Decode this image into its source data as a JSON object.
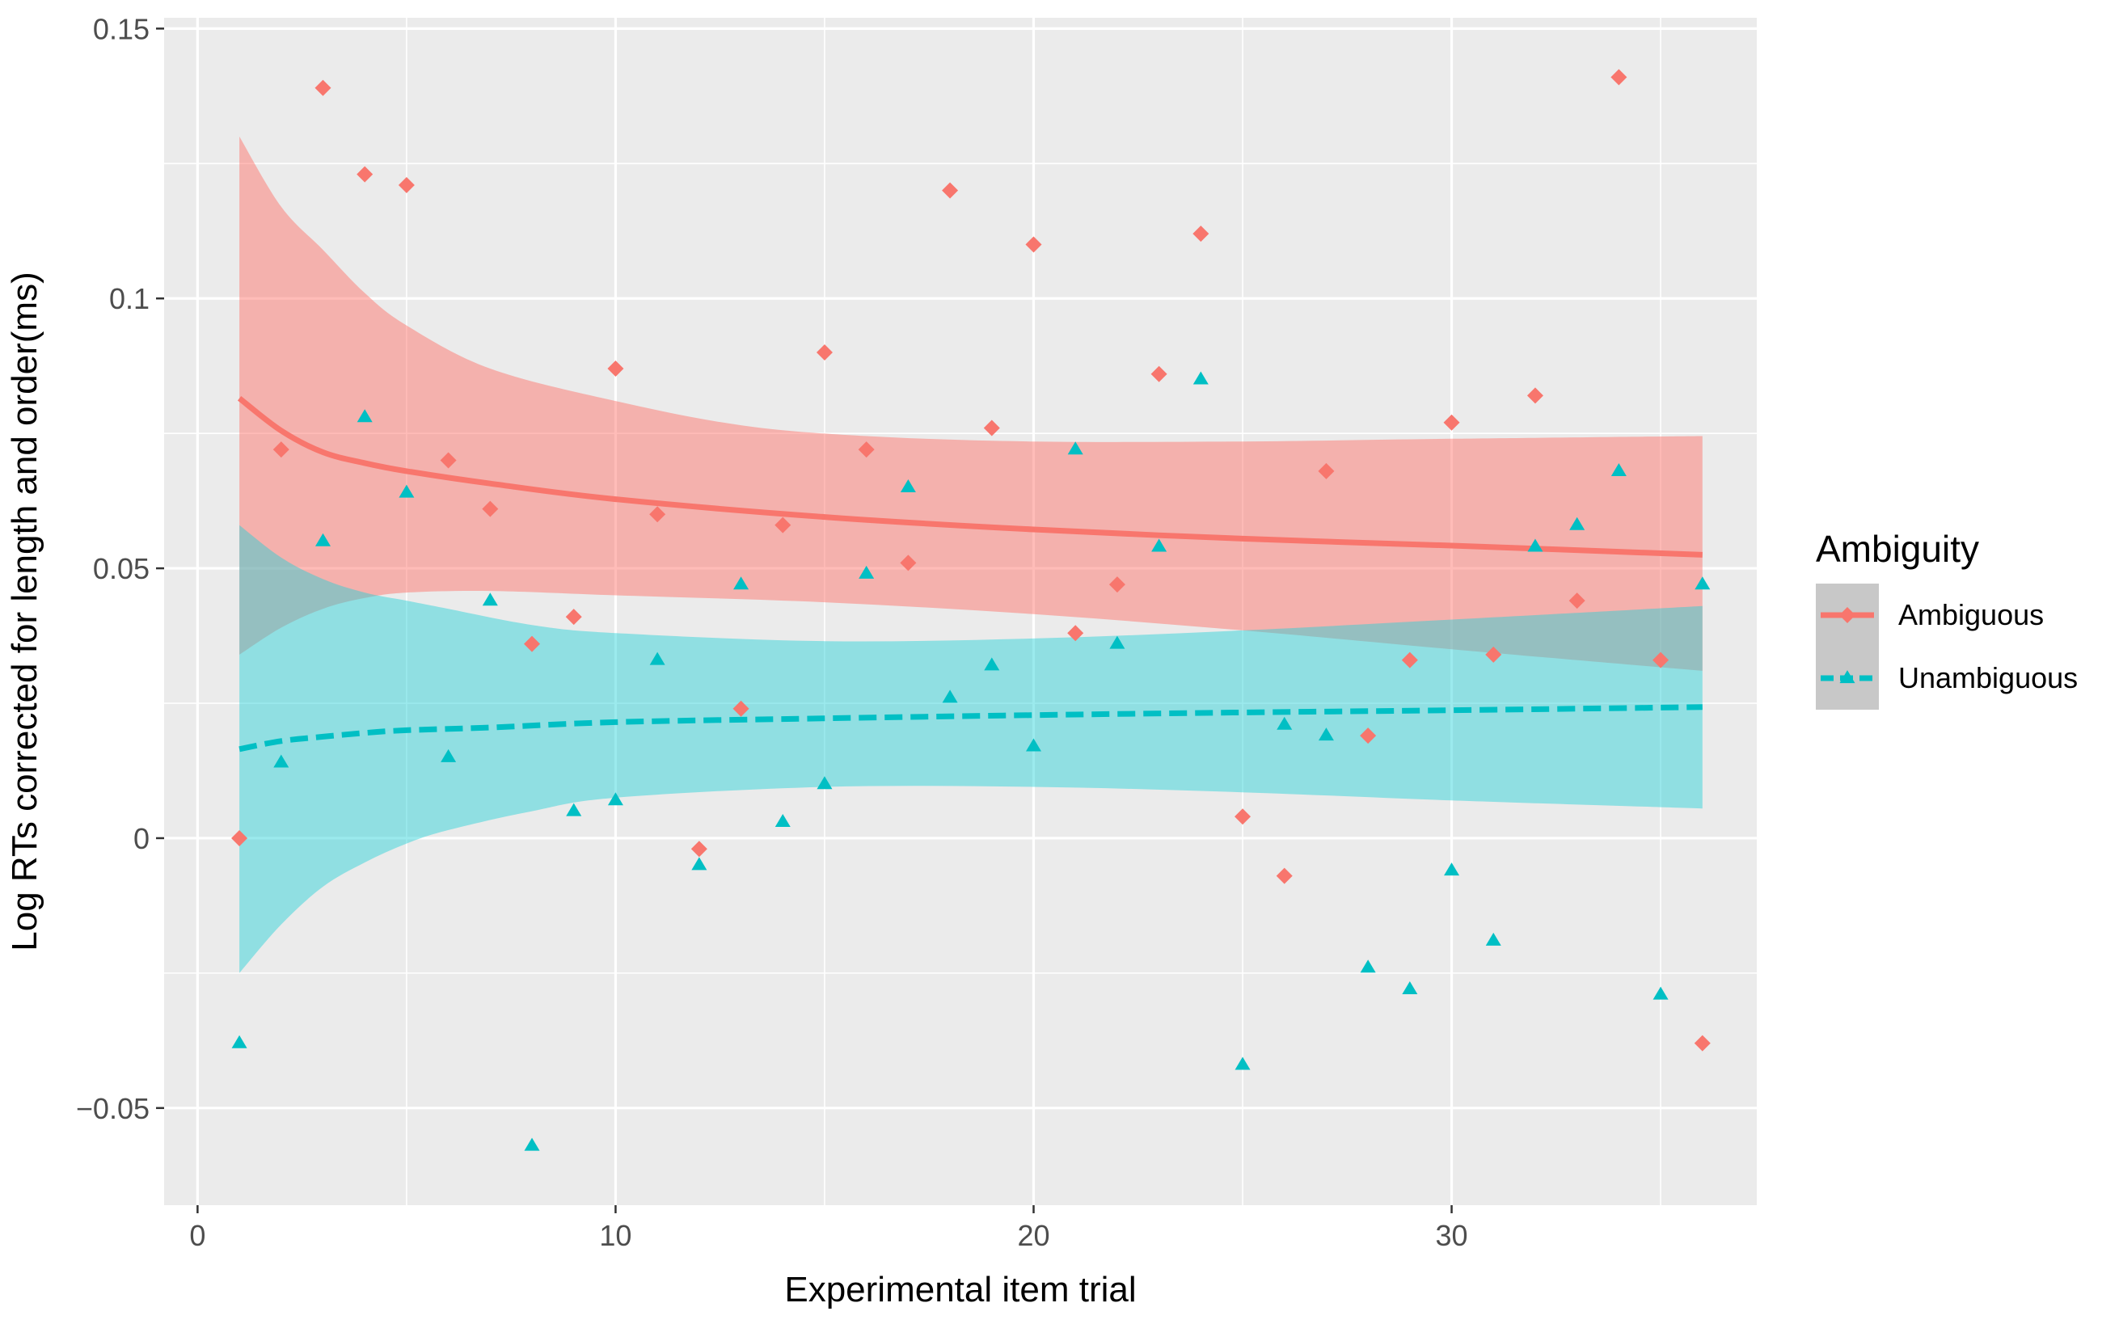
{
  "chart_data": {
    "type": "scatter",
    "title": "",
    "xlabel": "Experimental item trial",
    "ylabel": "Log RTs corrected for length and order(ms)",
    "xlim": [
      -0.8,
      37.3
    ],
    "ylim": [
      -0.068,
      0.152
    ],
    "x_ticks": [
      0,
      10,
      20,
      30
    ],
    "x_tick_labels": [
      "0",
      "10",
      "20",
      "30"
    ],
    "y_ticks": [
      -0.05,
      0,
      0.05,
      0.1,
      0.15
    ],
    "y_tick_labels": [
      "−0.05",
      "0",
      "0.05",
      "0.1",
      "0.15"
    ],
    "grid": true,
    "legend": {
      "title": "Ambiguity",
      "position": "right"
    },
    "series": [
      {
        "name": "Ambiguous",
        "color": "#F8766D",
        "ribbon_color": "#FF6A62",
        "marker": "diamond",
        "line_style": "solid",
        "points": [
          [
            1,
            0.0
          ],
          [
            2,
            0.072
          ],
          [
            3,
            0.139
          ],
          [
            4,
            0.123
          ],
          [
            5,
            0.121
          ],
          [
            6,
            0.07
          ],
          [
            7,
            0.061
          ],
          [
            8,
            0.036
          ],
          [
            9,
            0.041
          ],
          [
            10,
            0.087
          ],
          [
            11,
            0.06
          ],
          [
            12,
            -0.002
          ],
          [
            13,
            0.024
          ],
          [
            14,
            0.058
          ],
          [
            15,
            0.09
          ],
          [
            16,
            0.072
          ],
          [
            17,
            0.051
          ],
          [
            18,
            0.12
          ],
          [
            19,
            0.076
          ],
          [
            20,
            0.11
          ],
          [
            21,
            0.038
          ],
          [
            22,
            0.047
          ],
          [
            23,
            0.086
          ],
          [
            24,
            0.112
          ],
          [
            25,
            0.004
          ],
          [
            26,
            -0.007
          ],
          [
            27,
            0.068
          ],
          [
            28,
            0.019
          ],
          [
            29,
            0.033
          ],
          [
            30,
            0.077
          ],
          [
            31,
            0.034
          ],
          [
            32,
            0.082
          ],
          [
            33,
            0.044
          ],
          [
            34,
            0.141
          ],
          [
            35,
            0.033
          ],
          [
            36,
            -0.038
          ]
        ],
        "fit": [
          [
            1,
            0.0815
          ],
          [
            2,
            0.0755
          ],
          [
            3,
            0.0715
          ],
          [
            4,
            0.0695
          ],
          [
            5,
            0.068
          ],
          [
            7,
            0.0657
          ],
          [
            10,
            0.0628
          ],
          [
            15,
            0.0595
          ],
          [
            20,
            0.0572
          ],
          [
            25,
            0.0555
          ],
          [
            30,
            0.0542
          ],
          [
            36,
            0.0525
          ]
        ],
        "ci_upper": [
          [
            1,
            0.13
          ],
          [
            2,
            0.117
          ],
          [
            3,
            0.109
          ],
          [
            4,
            0.101
          ],
          [
            5,
            0.095
          ],
          [
            7,
            0.087
          ],
          [
            10,
            0.081
          ],
          [
            13,
            0.0765
          ],
          [
            16,
            0.0745
          ],
          [
            20,
            0.0735
          ],
          [
            25,
            0.0735
          ],
          [
            30,
            0.074
          ],
          [
            36,
            0.0745
          ]
        ],
        "ci_lower": [
          [
            1,
            0.034
          ],
          [
            2,
            0.039
          ],
          [
            3,
            0.0425
          ],
          [
            4,
            0.0445
          ],
          [
            5,
            0.0455
          ],
          [
            7,
            0.0458
          ],
          [
            10,
            0.045
          ],
          [
            15,
            0.0437
          ],
          [
            20,
            0.0415
          ],
          [
            25,
            0.0385
          ],
          [
            30,
            0.035
          ],
          [
            36,
            0.031
          ]
        ]
      },
      {
        "name": "Unambiguous",
        "color": "#00BFC4",
        "ribbon_color": "#21D0D6",
        "marker": "triangle",
        "line_style": "dashed",
        "points": [
          [
            1,
            -0.038
          ],
          [
            2,
            0.014
          ],
          [
            3,
            0.055
          ],
          [
            4,
            0.078
          ],
          [
            5,
            0.064
          ],
          [
            6,
            0.015
          ],
          [
            7,
            0.044
          ],
          [
            8,
            -0.057
          ],
          [
            9,
            0.005
          ],
          [
            10,
            0.007
          ],
          [
            11,
            0.033
          ],
          [
            12,
            -0.005
          ],
          [
            13,
            0.047
          ],
          [
            14,
            0.003
          ],
          [
            15,
            0.01
          ],
          [
            16,
            0.049
          ],
          [
            17,
            0.065
          ],
          [
            18,
            0.026
          ],
          [
            19,
            0.032
          ],
          [
            20,
            0.017
          ],
          [
            21,
            0.072
          ],
          [
            22,
            0.036
          ],
          [
            23,
            0.054
          ],
          [
            24,
            0.085
          ],
          [
            25,
            -0.042
          ],
          [
            26,
            0.021
          ],
          [
            27,
            0.019
          ],
          [
            28,
            -0.024
          ],
          [
            29,
            -0.028
          ],
          [
            30,
            -0.006
          ],
          [
            31,
            -0.019
          ],
          [
            32,
            0.054
          ],
          [
            33,
            0.058
          ],
          [
            34,
            0.068
          ],
          [
            35,
            -0.029
          ],
          [
            36,
            0.047
          ]
        ],
        "fit": [
          [
            1,
            0.0165
          ],
          [
            2,
            0.018
          ],
          [
            3,
            0.0188
          ],
          [
            4,
            0.0195
          ],
          [
            5,
            0.02
          ],
          [
            7,
            0.0205
          ],
          [
            10,
            0.0215
          ],
          [
            15,
            0.0222
          ],
          [
            20,
            0.0228
          ],
          [
            25,
            0.0233
          ],
          [
            30,
            0.0237
          ],
          [
            36,
            0.0243
          ]
        ],
        "ci_upper": [
          [
            1,
            0.058
          ],
          [
            2,
            0.052
          ],
          [
            3,
            0.048
          ],
          [
            4,
            0.0455
          ],
          [
            5,
            0.044
          ],
          [
            6,
            0.0425
          ],
          [
            8,
            0.0395
          ],
          [
            10,
            0.038
          ],
          [
            15,
            0.0365
          ],
          [
            20,
            0.037
          ],
          [
            25,
            0.0385
          ],
          [
            30,
            0.0405
          ],
          [
            36,
            0.043
          ]
        ],
        "ci_lower": [
          [
            1,
            -0.025
          ],
          [
            2,
            -0.016
          ],
          [
            3,
            -0.009
          ],
          [
            4,
            -0.0045
          ],
          [
            5,
            -0.001
          ],
          [
            6,
            0.0015
          ],
          [
            8,
            0.005
          ],
          [
            10,
            0.0075
          ],
          [
            15,
            0.0095
          ],
          [
            20,
            0.0095
          ],
          [
            25,
            0.0085
          ],
          [
            30,
            0.007
          ],
          [
            36,
            0.0055
          ]
        ]
      }
    ]
  }
}
